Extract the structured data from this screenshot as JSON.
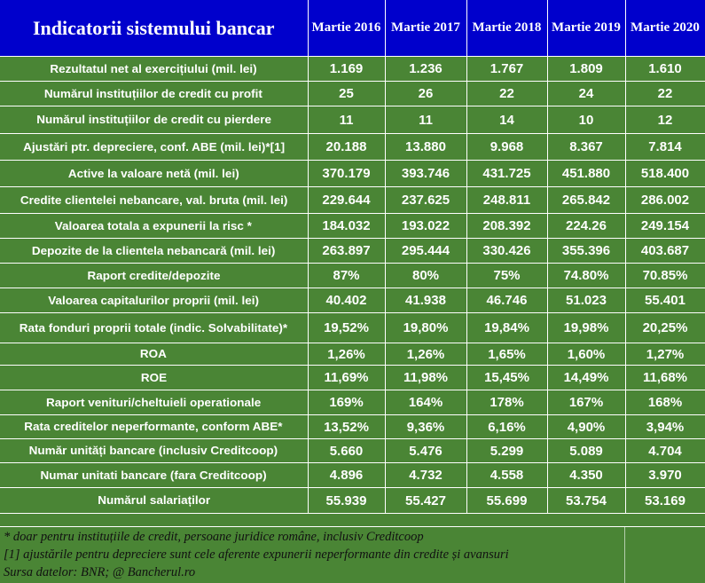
{
  "header": {
    "title": "Indicatorii sistemului bancar",
    "years": [
      "Martie 2016",
      "Martie 2017",
      "Martie 2018",
      "Martie 2019",
      "Martie 2020"
    ]
  },
  "rows": [
    {
      "label": "Rezultatul net al exercițiului (mil. lei)",
      "values": [
        "1.169",
        "1.236",
        "1.767",
        "1.809",
        "1.610"
      ]
    },
    {
      "label": "Numărul instituțiilor de credit cu profit",
      "values": [
        "25",
        "26",
        "22",
        "24",
        "22"
      ]
    },
    {
      "label": "Numărul instituțiilor de credit cu pierdere",
      "values": [
        "11",
        "11",
        "14",
        "10",
        "12"
      ]
    },
    {
      "label": "Ajustări ptr. depreciere, conf. ABE (mil. lei)*[1]",
      "values": [
        "20.188",
        "13.880",
        "9.968",
        "8.367",
        "7.814"
      ]
    },
    {
      "label": "Active la valoare netă (mil. lei)",
      "values": [
        "370.179",
        "393.746",
        "431.725",
        "451.880",
        "518.400"
      ]
    },
    {
      "label": "Credite clientelei nebancare, val. bruta (mil. lei)",
      "values": [
        "229.644",
        "237.625",
        "248.811",
        "265.842",
        "286.002"
      ]
    },
    {
      "label": "Valoarea totala a expunerii la risc *",
      "values": [
        "184.032",
        "193.022",
        "208.392",
        "224.26",
        "249.154"
      ]
    },
    {
      "label": "Depozite de la clientela nebancară (mil. lei)",
      "values": [
        "263.897",
        "295.444",
        "330.426",
        "355.396",
        "403.687"
      ]
    },
    {
      "label": "Raport credite/depozite",
      "values": [
        "87%",
        "80%",
        "75%",
        "74.80%",
        "70.85%"
      ]
    },
    {
      "label": "Valoarea capitalurilor proprii  (mil. lei)",
      "values": [
        "40.402",
        "41.938",
        "46.746",
        "51.023",
        "55.401"
      ]
    },
    {
      "label": "Rata fonduri proprii totale (indic. Solvabilitate)*",
      "values": [
        "19,52%",
        "19,80%",
        "19,84%",
        "19,98%",
        "20,25%"
      ]
    },
    {
      "label": "ROA",
      "values": [
        "1,26%",
        "1,26%",
        "1,65%",
        "1,60%",
        "1,27%"
      ]
    },
    {
      "label": "ROE",
      "values": [
        "11,69%",
        "11,98%",
        "15,45%",
        "14,49%",
        "11,68%"
      ]
    },
    {
      "label": "Raport venituri/cheltuieli operationale",
      "values": [
        "169%",
        "164%",
        "178%",
        "167%",
        "168%"
      ]
    },
    {
      "label": "Rata creditelor neperformante, conform ABE*",
      "values": [
        "13,52%",
        "9,36%",
        "6,16%",
        "4,90%",
        "3,94%"
      ]
    },
    {
      "label": "Număr unități bancare (inclusiv Creditcoop)",
      "values": [
        "5.660",
        "5.476",
        "5.299",
        "5.089",
        "4.704"
      ]
    },
    {
      "label": "Numar unitati bancare (fara Creditcoop)",
      "values": [
        "4.896",
        "4.732",
        "4.558",
        "4.350",
        "3.970"
      ]
    },
    {
      "label": "Numărul salariaților",
      "values": [
        "55.939",
        "55.427",
        "55.699",
        "53.754",
        "53.169"
      ]
    }
  ],
  "footnotes": [
    "* doar pentru instituțiile de credit, persoane juridice române, inclusiv Creditcoop",
    "[1]  ajustările pentru depreciere sunt cele aferente expunerii neperformante din credite și avansuri",
    "Sursa datelor: BNR; @ Bancherul.ro"
  ],
  "colors": {
    "header_bg": "#0000cc",
    "body_bg": "#4a8535",
    "text": "#ffffff"
  }
}
